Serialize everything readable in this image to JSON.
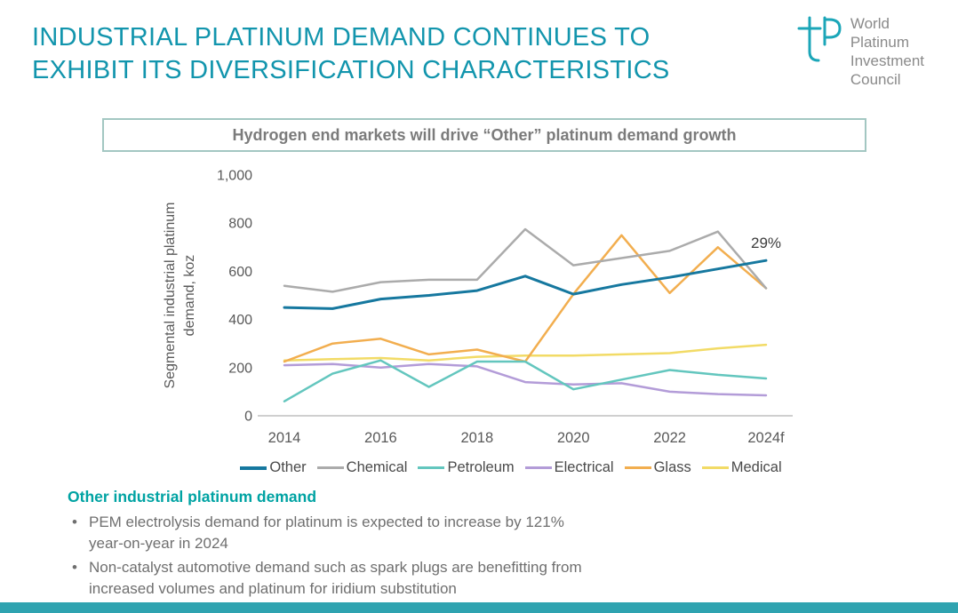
{
  "header": {
    "title_line1": "INDUSTRIAL PLATINUM DEMAND CONTINUES TO",
    "title_line2": "EXHIBIT ITS DIVERSIFICATION CHARACTERISTICS",
    "logo_lines": [
      "World",
      "Platinum",
      "Investment",
      "Council"
    ]
  },
  "banner": {
    "text": "Hydrogen end markets will drive “Other” platinum demand growth"
  },
  "chart_data": {
    "type": "line",
    "ylabel": "Segmental industrial platinum demand, koz",
    "ylabel_lines": [
      "Segmental industrial platinum",
      "demand, koz"
    ],
    "ylim": [
      0,
      1000
    ],
    "yticks": [
      0,
      200,
      400,
      600,
      800,
      1000
    ],
    "x": [
      2014,
      2015,
      2016,
      2017,
      2018,
      2019,
      2020,
      2021,
      2022,
      2023,
      2024
    ],
    "xticks": [
      2014,
      2016,
      2018,
      2020,
      2022,
      2024
    ],
    "xtick_labels": [
      "2014",
      "2016",
      "2018",
      "2020",
      "2022",
      "2024f"
    ],
    "grid": false,
    "legend_position": "bottom",
    "annotation": {
      "text": "29%",
      "series": "Other",
      "x": 2024
    },
    "series": [
      {
        "name": "Other",
        "color": "#16789F",
        "values": [
          450,
          445,
          485,
          500,
          520,
          580,
          505,
          545,
          575,
          610,
          645
        ]
      },
      {
        "name": "Chemical",
        "color": "#ABABAB",
        "values": [
          540,
          515,
          555,
          565,
          565,
          775,
          625,
          655,
          685,
          765,
          530
        ]
      },
      {
        "name": "Petroleum",
        "color": "#63C6BE",
        "values": [
          60,
          175,
          230,
          120,
          225,
          225,
          110,
          150,
          190,
          170,
          155
        ]
      },
      {
        "name": "Electrical",
        "color": "#B39CD8",
        "values": [
          210,
          215,
          200,
          215,
          205,
          140,
          130,
          135,
          100,
          90,
          85
        ]
      },
      {
        "name": "Glass",
        "color": "#F2AE4F",
        "values": [
          225,
          300,
          320,
          255,
          275,
          225,
          505,
          750,
          510,
          700,
          530
        ]
      },
      {
        "name": "Medical",
        "color": "#F2DB66",
        "values": [
          230,
          235,
          240,
          230,
          245,
          250,
          250,
          255,
          260,
          280,
          295
        ]
      }
    ]
  },
  "notes": {
    "heading": "Other industrial platinum demand",
    "bullets": [
      "PEM electrolysis demand for platinum is expected to increase by 121% year-on-year in 2024",
      "Non-catalyst automotive demand such as spark plugs are benefitting from increased volumes and platinum for iridium substitution"
    ]
  },
  "theme": {
    "accent": "#1295AD",
    "notes_accent": "#00A3A3",
    "bottom_bar": "#2FA3B0",
    "body_text": "#6F6F6F"
  }
}
